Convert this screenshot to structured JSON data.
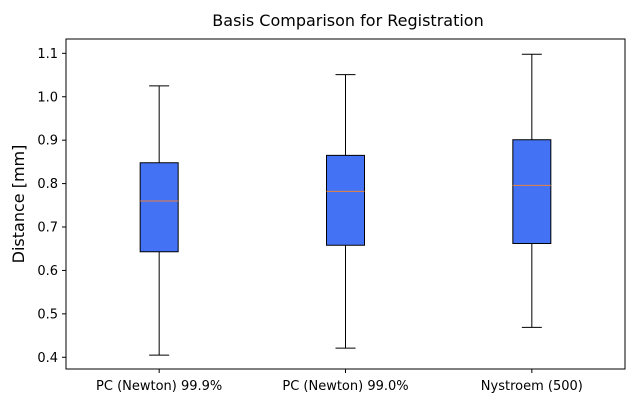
{
  "chart_data": {
    "type": "box",
    "title": "Basis Comparison for Registration",
    "xlabel": "",
    "ylabel": "Distance [mm]",
    "ylim": [
      0.373,
      1.133
    ],
    "yticks": [
      "0.4",
      "0.5",
      "0.6",
      "0.7",
      "0.8",
      "0.9",
      "1.0",
      "1.1"
    ],
    "categories": [
      "PC (Newton) 99.9%",
      "PC (Newton) 99.0%",
      "Nystroem (500)"
    ],
    "boxes": [
      {
        "whisker_low": 0.405,
        "q1": 0.643,
        "median": 0.76,
        "q3": 0.848,
        "whisker_high": 1.025
      },
      {
        "whisker_low": 0.421,
        "q1": 0.658,
        "median": 0.782,
        "q3": 0.865,
        "whisker_high": 1.051
      },
      {
        "whisker_low": 0.469,
        "q1": 0.662,
        "median": 0.796,
        "q3": 0.901,
        "whisker_high": 1.098
      }
    ],
    "grid": false,
    "legend": "none",
    "colors": {
      "box_fill": "#4472f5",
      "median": "#e8803a",
      "line": "#000000"
    }
  }
}
